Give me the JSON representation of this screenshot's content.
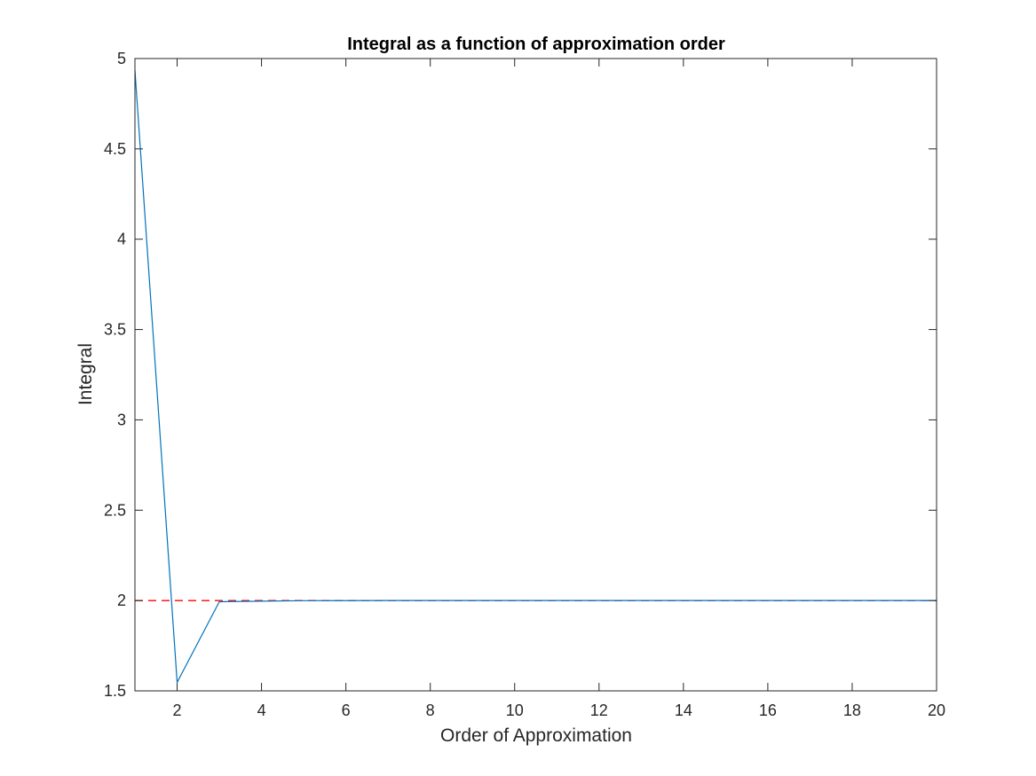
{
  "chart_data": {
    "type": "line",
    "title": "Integral as a function of approximation order",
    "xlabel": "Order of Approximation",
    "ylabel": "Integral",
    "xlim": [
      1,
      20
    ],
    "ylim": [
      1.5,
      5
    ],
    "xticks": [
      2,
      4,
      6,
      8,
      10,
      12,
      14,
      16,
      18,
      20
    ],
    "yticks": [
      1.5,
      2,
      2.5,
      3,
      3.5,
      4,
      4.5,
      5
    ],
    "ytick_labels": [
      "1.5",
      "2",
      "2.5",
      "3",
      "3.5",
      "4",
      "4.5",
      "5"
    ],
    "grid": false,
    "series": [
      {
        "color": "#0072BD",
        "style": "solid",
        "x": [
          1,
          2,
          3,
          4,
          5,
          6,
          7,
          8,
          9,
          10,
          11,
          12,
          13,
          14,
          15,
          16,
          17,
          18,
          19,
          20
        ],
        "y": [
          4.9348,
          1.547,
          1.9934,
          1.9966,
          1.9991,
          1.9996,
          1.9999,
          1.9999,
          2.0,
          2.0,
          2.0,
          2.0,
          2.0,
          2.0,
          2.0,
          2.0,
          2.0,
          2.0,
          2.0,
          2.0
        ]
      },
      {
        "color": "#FF0000",
        "style": "dashed",
        "x": [
          1,
          20
        ],
        "y": [
          2,
          2
        ]
      }
    ]
  }
}
